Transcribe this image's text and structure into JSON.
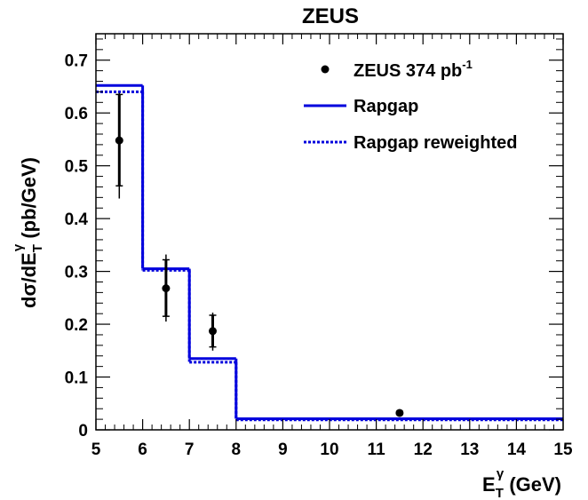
{
  "chart_data": {
    "type": "histogram",
    "title": "ZEUS",
    "xlabel": {
      "main": "E",
      "sub": "T",
      "sup": "γ",
      "unit": " (GeV)"
    },
    "ylabel": {
      "pre": "dσ/dE",
      "sub": "T",
      "sup": "γ",
      "unit": " (pb/GeV)"
    },
    "xlim": [
      5,
      15
    ],
    "ylim": [
      0,
      0.75
    ],
    "x_ticks": [
      "5",
      "6",
      "7",
      "8",
      "9",
      "10",
      "11",
      "12",
      "13",
      "14",
      "15"
    ],
    "y_ticks": [
      "0",
      "0.1",
      "0.2",
      "0.3",
      "0.4",
      "0.5",
      "0.6",
      "0.7"
    ],
    "bin_edges": [
      5,
      6,
      7,
      8,
      15
    ],
    "legend": {
      "placement": "top-right",
      "data_label": {
        "main": "ZEUS 374 pb",
        "sup": "-1"
      },
      "rapgap_label": "Rapgap",
      "reweighted_label": "Rapgap reweighted"
    },
    "series": [
      {
        "name": "ZEUS 374 pb-1",
        "kind": "points",
        "x": [
          5.5,
          6.5,
          7.5,
          11.5
        ],
        "y": [
          0.548,
          0.268,
          0.187,
          0.032
        ],
        "stat_lo": [
          0.462,
          0.215,
          0.157,
          0.029
        ],
        "stat_hi": [
          0.635,
          0.322,
          0.217,
          0.035
        ],
        "syst_lo": [
          0.438,
          0.205,
          0.15,
          0.027
        ],
        "syst_hi": [
          0.638,
          0.332,
          0.222,
          0.037
        ]
      },
      {
        "name": "Rapgap",
        "kind": "step",
        "color": "#0000dd",
        "values": [
          0.652,
          0.305,
          0.135,
          0.021
        ]
      },
      {
        "name": "Rapgap reweighted",
        "kind": "step-dotted",
        "color": "#0000dd",
        "values": [
          0.64,
          0.302,
          0.128,
          0.019
        ]
      }
    ]
  }
}
